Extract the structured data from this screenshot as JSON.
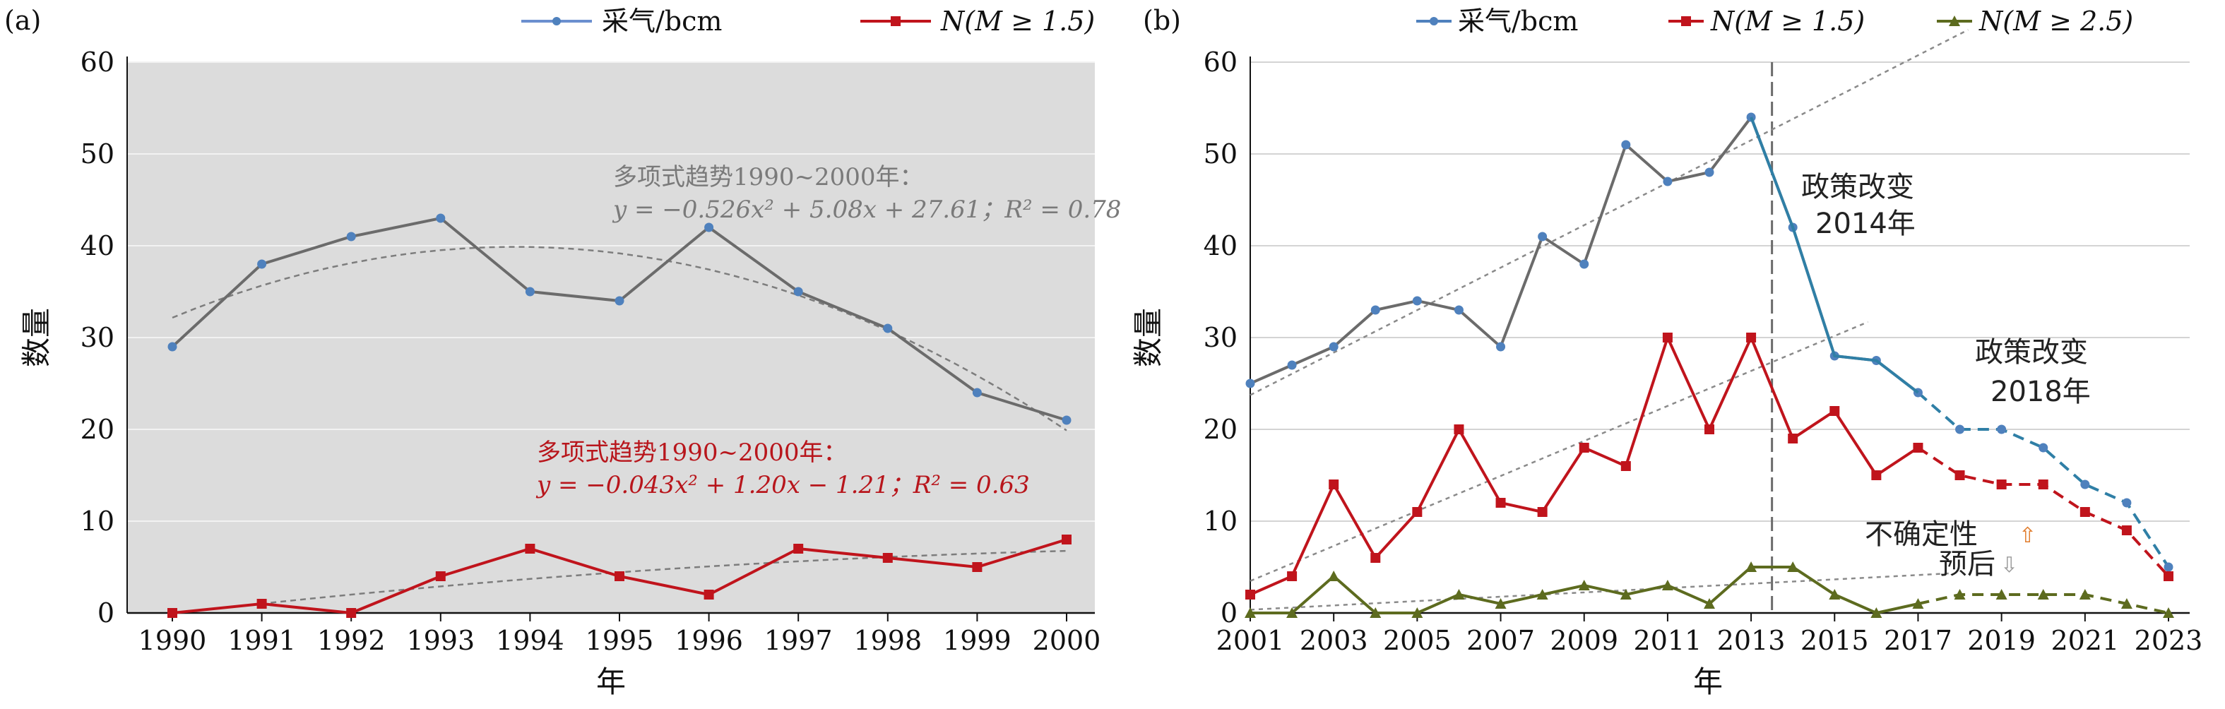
{
  "chart_data": [
    {
      "type": "line",
      "panel_label": "(a)",
      "xlabel": "年",
      "ylabel": "数量",
      "ylim": [
        0,
        60
      ],
      "yticks": [
        0,
        10,
        20,
        30,
        40,
        50,
        60
      ],
      "grid": true,
      "legend_position": "top",
      "x": [
        1990,
        1991,
        1992,
        1993,
        1994,
        1995,
        1996,
        1997,
        1998,
        1999,
        2000
      ],
      "series": [
        {
          "name": "采气/bcm",
          "color": "#6b6b6b",
          "values": [
            29,
            38,
            41,
            43,
            35,
            34,
            42,
            35,
            31,
            24,
            21
          ]
        },
        {
          "name": "N(M ≥ 1.5)",
          "color": "#c0141c",
          "values": [
            0,
            1,
            0,
            4,
            7,
            4,
            2,
            7,
            6,
            5,
            8
          ]
        }
      ],
      "trend_annotations": [
        {
          "line1": "多项式趋势1990~2000年：",
          "line2": "y = −0.526x² + 5.08x + 27.61；R² = 0.78",
          "color": "#7a7a7a"
        },
        {
          "line1": "多项式趋势1990~2000年：",
          "line2": "y = −0.043x² + 1.20x − 1.21；R² = 0.63",
          "color": "#b8161c"
        }
      ]
    },
    {
      "type": "line",
      "panel_label": "(b)",
      "xlabel": "年",
      "ylabel": "数量",
      "ylim": [
        0,
        60
      ],
      "yticks": [
        0,
        10,
        20,
        30,
        40,
        50,
        60
      ],
      "xtick_labels": [
        2001,
        2003,
        2005,
        2007,
        2009,
        2011,
        2013,
        2015,
        2017,
        2019,
        2021,
        2023
      ],
      "grid": true,
      "legend_position": "top",
      "x": [
        2001,
        2002,
        2003,
        2004,
        2005,
        2006,
        2007,
        2008,
        2009,
        2010,
        2011,
        2012,
        2013,
        2014,
        2015,
        2016,
        2017,
        2018,
        2019,
        2020,
        2021,
        2022,
        2023
      ],
      "series": [
        {
          "name": "采气/bcm",
          "color": "#6b6b6b",
          "values": [
            25,
            27,
            29,
            33,
            34,
            33,
            29,
            41,
            38,
            51,
            47,
            48,
            54,
            42,
            28,
            27.5,
            24,
            20,
            20,
            18,
            14,
            12,
            5
          ]
        },
        {
          "name": "N(M ≥ 1.5)",
          "color": "#c0141c",
          "values": [
            2,
            4,
            14,
            6,
            11,
            20,
            12,
            11,
            18,
            16,
            30,
            20,
            30,
            19,
            22,
            15,
            18,
            15,
            14,
            14,
            11,
            9,
            4
          ]
        },
        {
          "name": "N(M ≥ 2.5)",
          "color": "#5d6b1f",
          "values": [
            0,
            0,
            4,
            0,
            0,
            2,
            1,
            2,
            3,
            2,
            3,
            1,
            5,
            5,
            2,
            0,
            1,
            2,
            2,
            2,
            2,
            1,
            0
          ]
        }
      ],
      "forecast_from": 2017,
      "policy_change_year_line": 2013.5,
      "annotations": {
        "policy_2014": [
          "政策改变",
          "2014年"
        ],
        "policy_2018": [
          "政策改变",
          "2018年"
        ],
        "uncertainty": "不确定性",
        "forecast": "预后"
      }
    }
  ]
}
